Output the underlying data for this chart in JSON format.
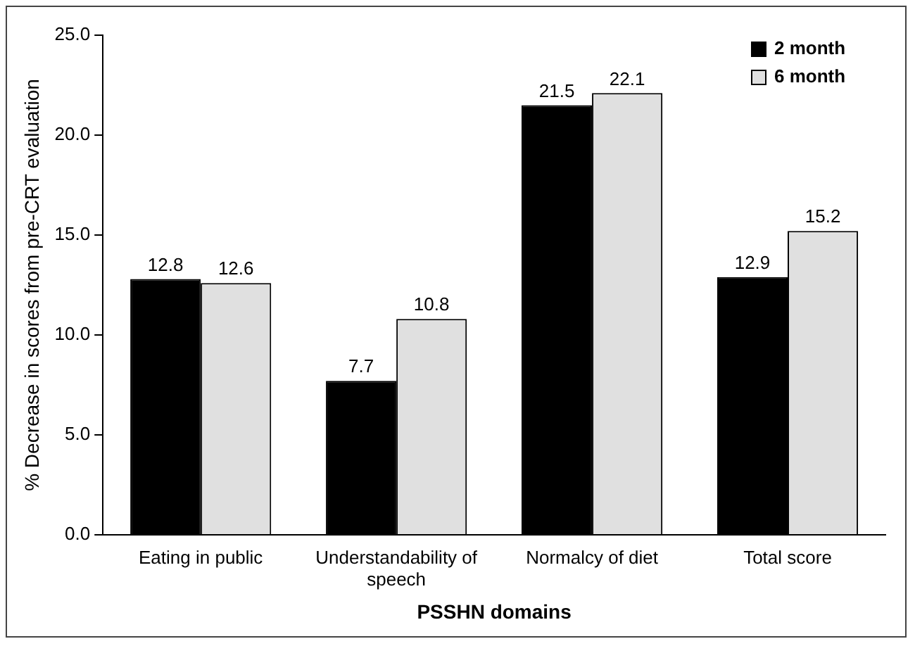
{
  "chart_data": {
    "type": "bar",
    "xlabel": "PSSHN domains",
    "ylabel": "% Decrease in scores from pre-CRT evaluation",
    "categories": [
      "Eating in public",
      "Understandability of speech",
      "Normalcy of diet",
      "Total score"
    ],
    "series": [
      {
        "name": "2 month",
        "color": "#000000",
        "values": [
          12.8,
          7.7,
          21.5,
          12.9
        ]
      },
      {
        "name": "6 month",
        "color": "#e0e0e0",
        "values": [
          12.6,
          10.8,
          22.1,
          15.2
        ]
      }
    ],
    "ylim": [
      0,
      25
    ],
    "yticks": [
      {
        "value": 0,
        "label": "0.0"
      },
      {
        "value": 5,
        "label": "5.0"
      },
      {
        "value": 10,
        "label": "10.0"
      },
      {
        "value": 15,
        "label": "15.0"
      },
      {
        "value": 20,
        "label": "20.0"
      },
      {
        "value": 25,
        "label": "25.0"
      }
    ],
    "grid": false,
    "legend": "top right",
    "data_labels": true
  }
}
